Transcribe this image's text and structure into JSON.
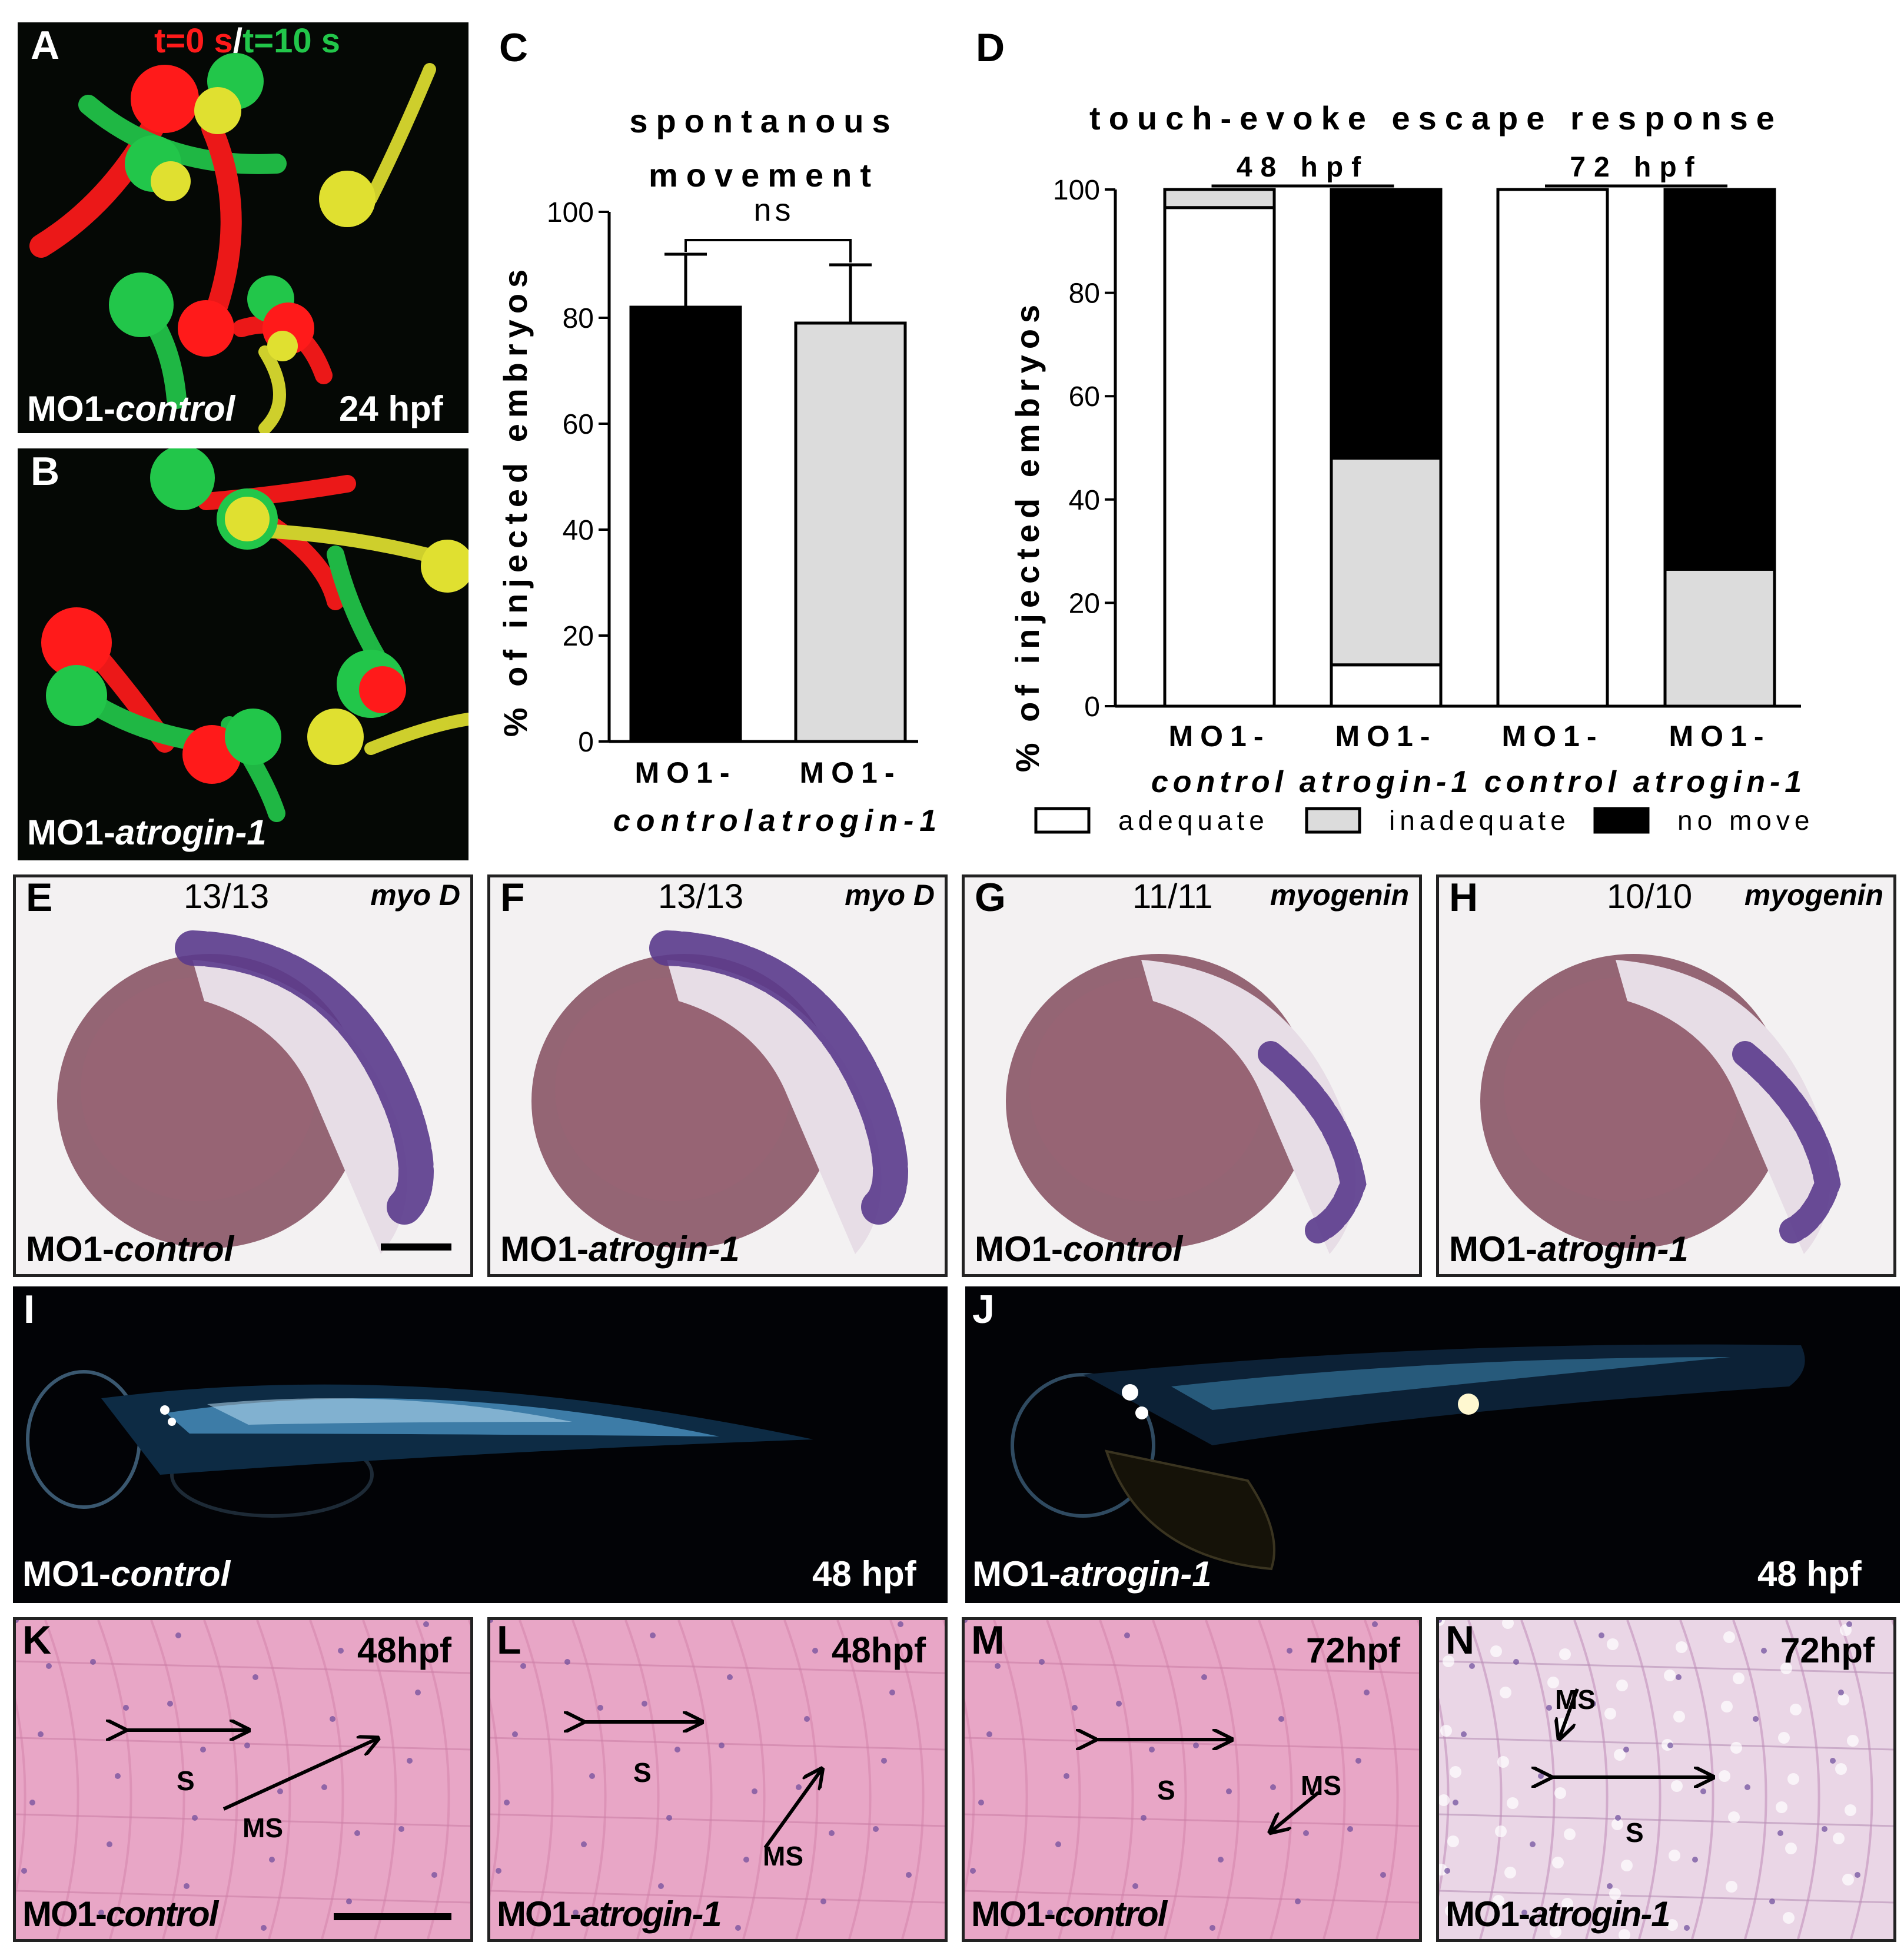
{
  "panels": {
    "A": {
      "letter": "A",
      "legend_t0": "t=0 s",
      "legend_slash": "/",
      "legend_t10": "t=10 s",
      "caption_prefix": "MO1-",
      "caption_gene": "control",
      "stage": "24 hpf"
    },
    "B": {
      "letter": "B",
      "caption_prefix": "MO1-",
      "caption_gene": "atrogin-1"
    },
    "E": {
      "letter": "E",
      "count": "13/13",
      "probe": "myo D",
      "caption_prefix": "MO1-",
      "caption_gene": "control"
    },
    "F": {
      "letter": "F",
      "count": "13/13",
      "probe": "myo D",
      "caption_prefix": "MO1-",
      "caption_gene": "atrogin-1"
    },
    "G": {
      "letter": "G",
      "count": "11/11",
      "probe": "myogenin",
      "caption_prefix": "MO1-",
      "caption_gene": "control"
    },
    "H": {
      "letter": "H",
      "count": "10/10",
      "probe": "myogenin",
      "caption_prefix": "MO1-",
      "caption_gene": "atrogin-1"
    },
    "I": {
      "letter": "I",
      "caption_prefix": "MO1-",
      "caption_gene": "control",
      "stage": "48 hpf"
    },
    "J": {
      "letter": "J",
      "caption_prefix": "MO1-",
      "caption_gene": "atrogin-1",
      "stage": "48 hpf"
    },
    "K": {
      "letter": "K",
      "stage": "48hpf",
      "caption_prefix": "MO1-",
      "caption_gene": "control",
      "label_s": "S",
      "label_ms": "MS"
    },
    "L": {
      "letter": "L",
      "stage": "48hpf",
      "caption_prefix": "MO1-",
      "caption_gene": "atrogin-1",
      "label_s": "S",
      "label_ms": "MS"
    },
    "M": {
      "letter": "M",
      "stage": "72hpf",
      "caption_prefix": "MO1-",
      "caption_gene": "control",
      "label_s": "S",
      "label_ms": "MS"
    },
    "N": {
      "letter": "N",
      "stage": "72hpf",
      "caption_prefix": "MO1-",
      "caption_gene": "atrogin-1",
      "label_s": "S",
      "label_ms": "MS"
    }
  },
  "colors": {
    "red_channel": "#ff1a1a",
    "green_channel": "#22c64a",
    "yellow_overlap": "#e0e030",
    "ish_stain": "#5a3a8c",
    "he_pink": "#e8a6c6",
    "bar_black": "#000000",
    "bar_grey": "#dcdcdc",
    "bar_white": "#ffffff"
  },
  "chart_data": [
    {
      "panel": "C",
      "type": "bar",
      "title_line1": "spontanous",
      "title_line2": "movement",
      "ylabel": "% of injected embryos",
      "ylim": [
        0,
        100
      ],
      "yticks": [
        0,
        20,
        40,
        60,
        80,
        100
      ],
      "categories": [
        {
          "line1": "MO1-",
          "line2": "control"
        },
        {
          "line1": "MO1-",
          "line2": "atrogin-1"
        }
      ],
      "values": [
        82,
        79
      ],
      "errors": [
        10,
        11
      ],
      "bar_colors": [
        "#000000",
        "#dcdcdc"
      ],
      "significance": "ns"
    },
    {
      "panel": "D",
      "type": "bar",
      "stacked": true,
      "title": "touch-evoke escape response",
      "ylabel": "% of injected embryos",
      "ylim": [
        0,
        100
      ],
      "yticks": [
        0,
        20,
        40,
        60,
        80,
        100
      ],
      "groups": [
        "48 hpf",
        "72 hpf"
      ],
      "categories": [
        {
          "line1": "MO1-",
          "line2": "control"
        },
        {
          "line1": "MO1-",
          "line2": "atrogin-1"
        },
        {
          "line1": "MO1-",
          "line2": "control"
        },
        {
          "line1": "MO1-",
          "line2": "atrogin-1"
        }
      ],
      "series": [
        {
          "name": "adequate",
          "color": "#ffffff",
          "values": [
            96.5,
            8,
            100,
            0
          ]
        },
        {
          "name": "inadequate",
          "color": "#dcdcdc",
          "values": [
            3.5,
            40,
            0,
            26.5
          ]
        },
        {
          "name": "no move",
          "color": "#000000",
          "values": [
            0,
            52,
            0,
            73.5
          ]
        }
      ],
      "legend_position": "bottom"
    }
  ]
}
